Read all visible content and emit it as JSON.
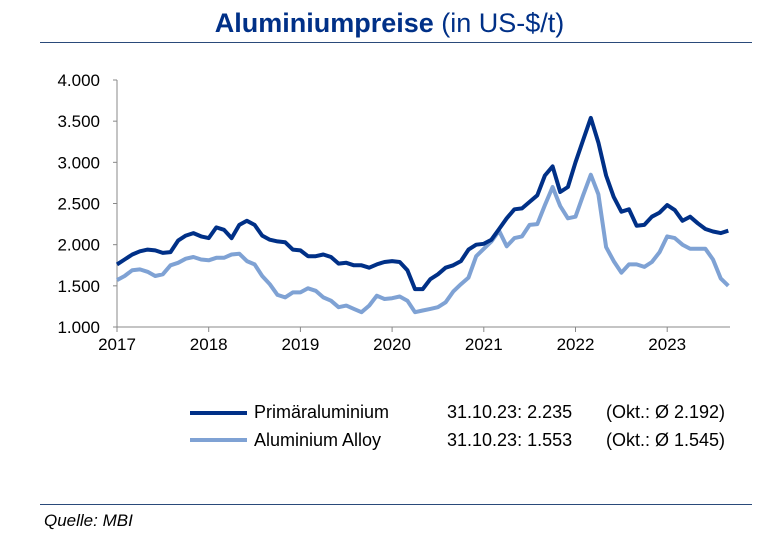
{
  "chart_data": {
    "type": "line",
    "title": "Aluminiumpreise",
    "subtitle": "(in US-$/t)",
    "xlabel": "",
    "ylabel": "",
    "ylim": [
      1000,
      4000
    ],
    "yticks": [
      "1.000",
      "1.500",
      "2.000",
      "2.500",
      "3.000",
      "3.500",
      "4.000"
    ],
    "ytick_values": [
      1000,
      1500,
      2000,
      2500,
      3000,
      3500,
      4000
    ],
    "xticks": [
      "2017",
      "2018",
      "2019",
      "2020",
      "2021",
      "2022",
      "2023"
    ],
    "x_start": "2017-01",
    "x_frequency": "monthly",
    "grid": false,
    "legend_position": "bottom",
    "series": [
      {
        "name": "Primäraluminium",
        "color": "#003087",
        "annotation": "31.10.23: 2.235",
        "average": "(Okt.: Ø 2.192)",
        "values": [
          1760,
          1820,
          1880,
          1920,
          1940,
          1930,
          1900,
          1910,
          2050,
          2110,
          2140,
          2100,
          2080,
          2210,
          2180,
          2080,
          2240,
          2290,
          2240,
          2110,
          2060,
          2040,
          2030,
          1940,
          1930,
          1860,
          1860,
          1880,
          1850,
          1770,
          1780,
          1750,
          1750,
          1720,
          1760,
          1790,
          1800,
          1790,
          1690,
          1460,
          1460,
          1580,
          1640,
          1720,
          1750,
          1800,
          1940,
          2000,
          2010,
          2060,
          2190,
          2320,
          2430,
          2440,
          2520,
          2600,
          2840,
          2950,
          2640,
          2700,
          3000,
          3270,
          3540,
          3240,
          2840,
          2580,
          2400,
          2430,
          2230,
          2240,
          2340,
          2390,
          2480,
          2420,
          2290,
          2340,
          2260,
          2190,
          2160,
          2140,
          2170
        ]
      },
      {
        "name": "Aluminium Alloy",
        "color": "#7fa2d4",
        "annotation": "31.10.23: 1.553",
        "average": "(Okt.: Ø 1.545)",
        "values": [
          1570,
          1620,
          1690,
          1700,
          1670,
          1620,
          1640,
          1750,
          1780,
          1830,
          1850,
          1820,
          1810,
          1840,
          1840,
          1880,
          1890,
          1800,
          1760,
          1620,
          1520,
          1390,
          1360,
          1420,
          1420,
          1470,
          1440,
          1360,
          1320,
          1240,
          1260,
          1220,
          1180,
          1260,
          1380,
          1340,
          1350,
          1370,
          1320,
          1180,
          1200,
          1220,
          1240,
          1300,
          1430,
          1520,
          1600,
          1860,
          1950,
          2040,
          2170,
          1980,
          2080,
          2100,
          2240,
          2250,
          2480,
          2700,
          2470,
          2320,
          2340,
          2600,
          2850,
          2610,
          1970,
          1800,
          1660,
          1760,
          1760,
          1730,
          1790,
          1910,
          2100,
          2080,
          2000,
          1950,
          1950,
          1950,
          1820,
          1590,
          1500
        ]
      }
    ]
  },
  "source": "Quelle: MBI"
}
